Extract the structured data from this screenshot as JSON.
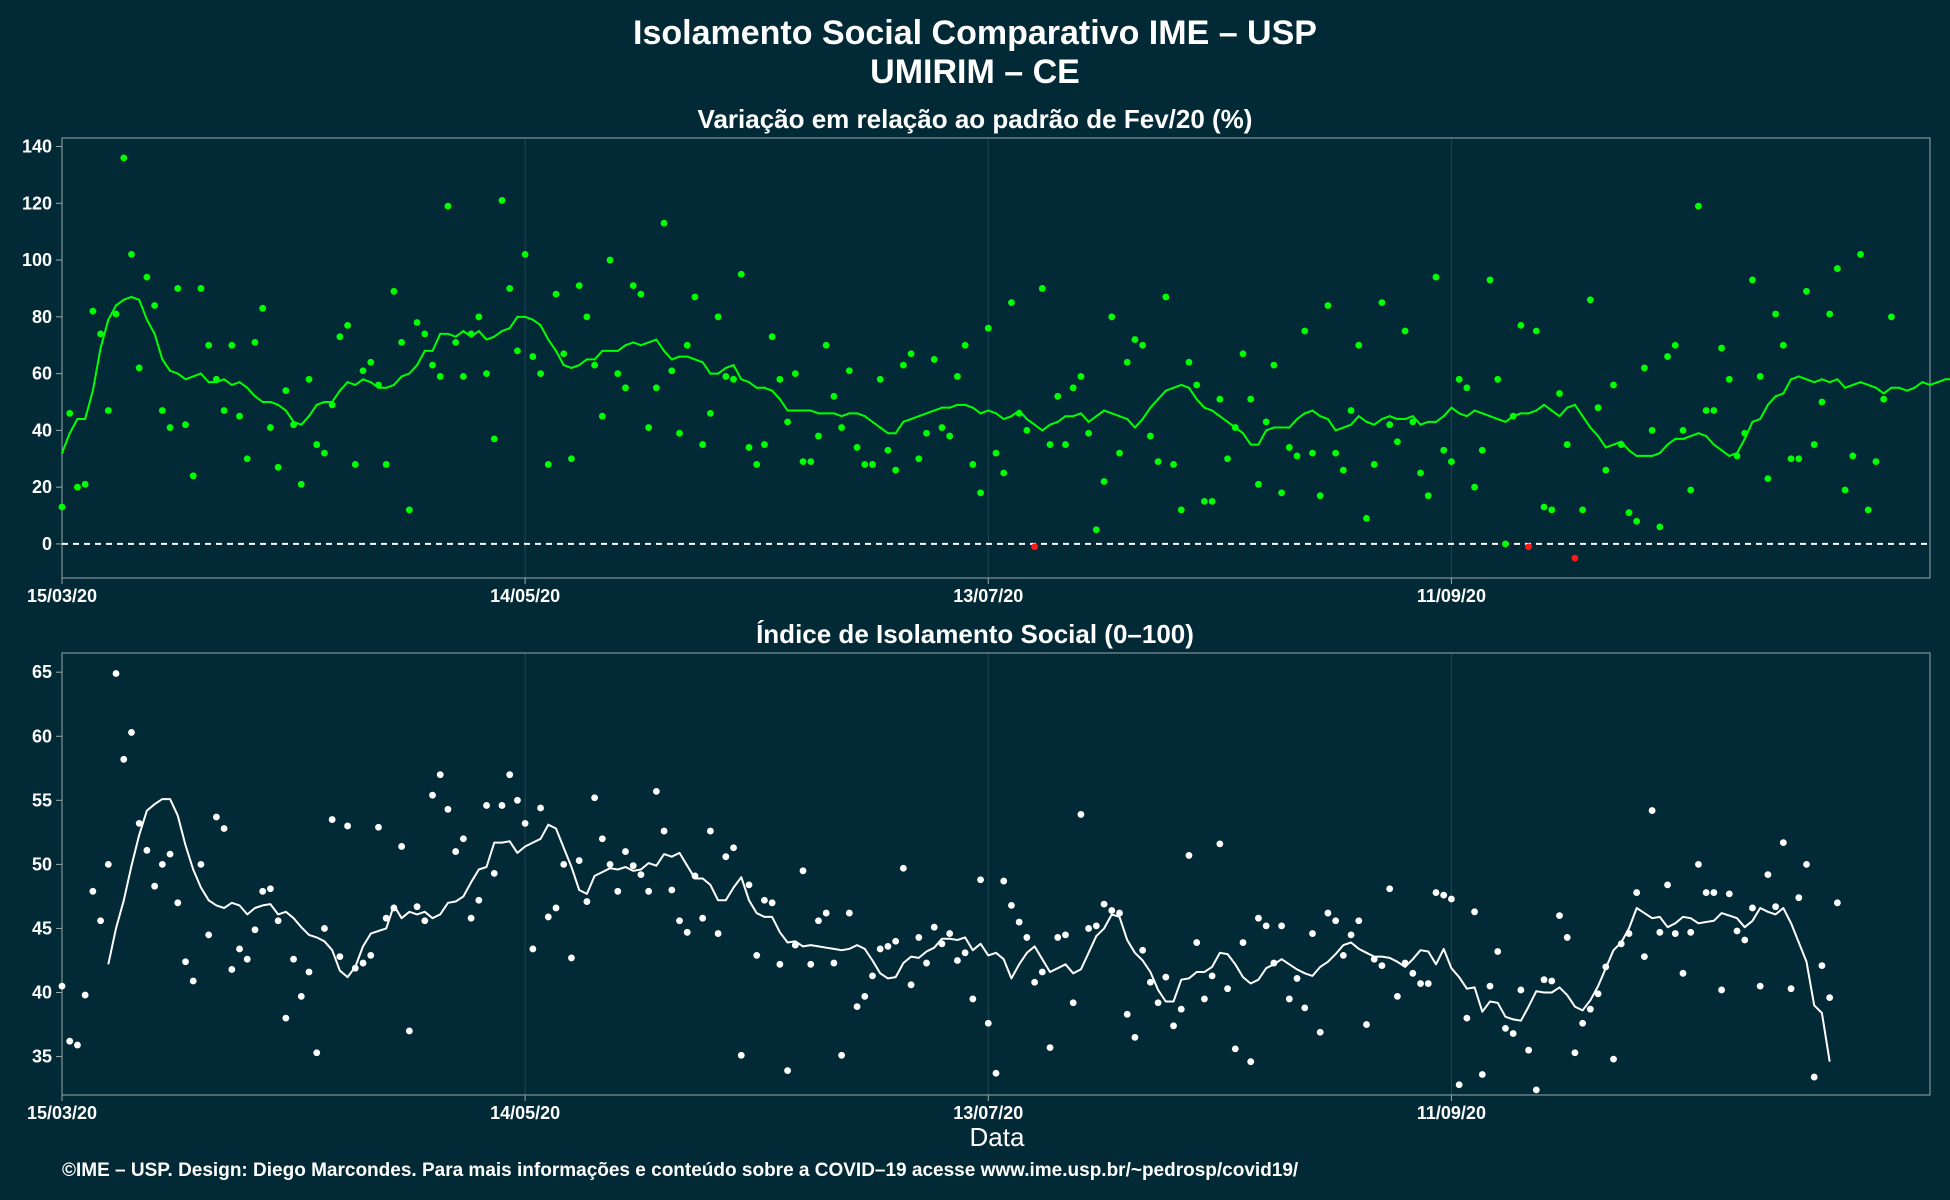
{
  "title_line1": "Isolamento Social Comparativo IME – USP",
  "title_line2": "UMIRIM – CE",
  "xlabel": "Data",
  "footer": "©IME – USP. Design: Diego Marcondes. Para mais informações e conteúdo sobre a COVID–19 acesse www.ime.usp.br/~pedrosp/covid19/",
  "colors": {
    "background": "#022a36",
    "panel_border": "#9aa7ab",
    "grid": "#1f4550",
    "green": "#00ff00",
    "red": "#ff1a1a",
    "white": "#ffffff"
  },
  "chart_data": [
    {
      "type": "scatter",
      "title": "Variação em relação ao padrão de Fev/20 (%)",
      "x_start": "2020-03-15",
      "x_end": "2020-11-12",
      "x_ticks": [
        "15/03/20",
        "14/05/20",
        "13/07/20",
        "11/09/20"
      ],
      "x_tick_dates": [
        "2020-03-15",
        "2020-05-14",
        "2020-07-13",
        "2020-09-11"
      ],
      "y_ticks": [
        0,
        20,
        40,
        60,
        80,
        100,
        120,
        140
      ],
      "ylim": [
        -12,
        143
      ],
      "reference_line": 0,
      "legend": "none",
      "series": [
        {
          "kind": "points",
          "values": [
            13,
            46,
            20,
            21,
            82,
            74,
            47,
            81,
            136,
            102,
            62,
            94,
            84,
            47,
            41,
            90,
            42,
            24,
            90,
            70,
            58,
            47,
            70,
            45,
            30,
            71,
            83,
            41,
            27,
            54,
            42,
            21,
            58,
            35,
            32,
            49,
            73,
            77,
            28,
            61,
            64,
            56,
            28,
            89,
            71,
            12,
            78,
            74,
            63,
            59,
            119,
            71,
            59,
            74,
            80,
            60,
            37,
            121,
            90,
            68,
            102,
            66,
            60,
            28,
            88,
            67,
            30,
            91,
            80,
            63,
            45,
            100,
            60,
            55,
            91,
            88,
            41,
            55,
            113,
            61,
            39,
            70,
            87,
            35,
            46,
            80,
            59,
            58,
            95,
            34,
            28,
            35,
            73,
            58,
            43,
            60,
            29,
            29,
            38,
            70,
            52,
            41,
            61,
            34,
            28,
            28,
            58,
            33,
            26,
            63,
            67,
            30,
            39,
            65,
            41,
            38,
            59,
            70,
            28,
            18,
            76,
            32,
            25,
            85,
            46,
            40,
            -1,
            90,
            35,
            52,
            35,
            55,
            59,
            39,
            5,
            22,
            80,
            32,
            64,
            72,
            70,
            38,
            29,
            87,
            28,
            12,
            64,
            56,
            15,
            15,
            51,
            30,
            41,
            67,
            51,
            21,
            43,
            63,
            18,
            34,
            31,
            75,
            32,
            17,
            84,
            32,
            26,
            47,
            70,
            9,
            28,
            85,
            42,
            36,
            75,
            43,
            25,
            17,
            94,
            33,
            29,
            58,
            55,
            20,
            33,
            93,
            58,
            0,
            45,
            77,
            -1,
            75,
            13,
            12,
            53,
            35,
            -5,
            12,
            86,
            48,
            26,
            56,
            35,
            11,
            8,
            62,
            40,
            6,
            66,
            70,
            40,
            19,
            119,
            47,
            47,
            69,
            58,
            31,
            39,
            93,
            59,
            23,
            81,
            70,
            30,
            30,
            89,
            35,
            50,
            81,
            97,
            19,
            31,
            102,
            12,
            29,
            51,
            80
          ]
        },
        {
          "kind": "moving_average",
          "values": [
            32,
            39,
            44,
            44,
            54,
            69,
            79,
            84,
            86,
            87,
            86,
            79,
            74,
            65,
            61,
            60,
            58,
            59,
            60,
            57,
            57,
            58,
            56,
            57,
            55,
            52,
            50,
            50,
            49,
            47,
            43,
            42,
            45,
            49,
            50,
            50,
            54,
            57,
            56,
            58,
            57,
            55,
            55,
            56,
            59,
            60,
            63,
            68,
            68,
            74,
            74,
            73,
            75,
            73,
            75,
            72,
            73,
            75,
            76,
            80,
            80,
            79,
            77,
            72,
            68,
            63,
            62,
            63,
            65,
            65,
            68,
            68,
            68,
            70,
            71,
            70,
            71,
            72,
            68,
            65,
            66,
            66,
            65,
            64,
            60,
            60,
            62,
            63,
            58,
            57,
            55,
            55,
            54,
            51,
            47,
            47,
            47,
            47,
            46,
            46,
            46,
            45,
            46,
            46,
            45,
            43,
            41,
            39,
            39,
            43,
            44,
            45,
            46,
            47,
            48,
            48,
            49,
            49,
            48,
            46,
            47,
            46,
            44,
            45,
            47,
            44,
            42,
            40,
            42,
            43,
            45,
            45,
            46,
            43,
            45,
            47,
            46,
            45,
            44,
            41,
            44,
            48,
            51,
            54,
            55,
            56,
            55,
            51,
            48,
            47,
            45,
            43,
            41,
            39,
            35,
            35,
            40,
            41,
            41,
            41,
            44,
            46,
            47,
            45,
            44,
            40,
            41,
            42,
            45,
            43,
            42,
            44,
            45,
            44,
            44,
            45,
            42,
            43,
            43,
            45,
            48,
            46,
            45,
            47,
            46,
            45,
            44,
            43,
            45,
            46,
            46,
            47,
            49,
            47,
            45,
            48,
            49,
            45,
            41,
            38,
            34,
            35,
            36,
            33,
            31,
            31,
            31,
            32,
            35,
            37,
            37,
            38,
            39,
            38,
            35,
            33,
            31,
            32,
            37,
            43,
            44,
            49,
            52,
            53,
            58,
            59,
            58,
            57,
            58,
            57,
            58,
            55,
            56,
            57,
            56,
            55,
            53,
            55,
            55,
            54,
            55,
            57,
            56,
            57,
            58,
            58,
            56,
            52,
            49,
            47,
            45,
            44,
            45,
            46
          ]
        }
      ]
    },
    {
      "type": "scatter",
      "title": "Índice de Isolamento Social (0–100)",
      "x_start": "2020-03-15",
      "x_end": "2020-11-12",
      "x_ticks": [
        "15/03/20",
        "14/05/20",
        "13/07/20",
        "11/09/20"
      ],
      "x_tick_dates": [
        "2020-03-15",
        "2020-05-14",
        "2020-07-13",
        "2020-09-11"
      ],
      "y_ticks": [
        35,
        40,
        45,
        50,
        55,
        60,
        65
      ],
      "ylim": [
        32,
        66.5
      ],
      "legend": "none",
      "series": [
        {
          "kind": "points",
          "values": [
            40.5,
            36.2,
            35.9,
            39.8,
            47.9,
            45.6,
            50.0,
            64.9,
            58.2,
            60.3,
            53.2,
            51.1,
            48.3,
            50.0,
            50.8,
            47.0,
            42.4,
            40.9,
            50.0,
            44.5,
            53.7,
            52.8,
            41.8,
            43.4,
            42.6,
            44.9,
            47.9,
            48.1,
            45.6,
            38.0,
            42.6,
            39.7,
            41.6,
            35.3,
            45.0,
            53.5,
            42.8,
            53.0,
            41.9,
            42.3,
            42.9,
            52.9,
            45.8,
            46.6,
            51.4,
            37.0,
            46.7,
            45.6,
            55.4,
            57.0,
            54.3,
            51.0,
            52.0,
            45.8,
            47.2,
            54.6,
            49.3,
            54.6,
            57.0,
            55.0,
            53.2,
            43.4,
            54.4,
            45.9,
            46.6,
            50.0,
            42.7,
            50.3,
            47.1,
            55.2,
            52.0,
            50.0,
            47.9,
            51.0,
            49.9,
            49.2,
            47.9,
            55.7,
            52.6,
            48.0,
            45.6,
            44.7,
            49.1,
            45.8,
            52.6,
            44.6,
            50.6,
            51.3,
            35.1,
            48.4,
            42.9,
            47.2,
            47.0,
            42.2,
            33.9,
            43.7,
            49.5,
            42.2,
            45.6,
            46.2,
            42.3,
            35.1,
            46.2,
            38.9,
            39.7,
            41.3,
            43.4,
            43.6,
            44.0,
            49.7,
            40.6,
            44.3,
            42.3,
            45.1,
            43.8,
            44.6,
            42.5,
            43.1,
            39.5,
            48.8,
            37.6,
            33.7,
            48.7,
            46.8,
            45.5,
            44.3,
            40.8,
            41.6,
            35.7,
            44.3,
            44.5,
            39.2,
            53.9,
            45.0,
            45.2,
            46.9,
            46.4,
            46.2,
            38.3,
            36.5,
            43.3,
            40.8,
            39.2,
            41.2,
            37.4,
            38.7,
            50.7,
            43.9,
            39.5,
            41.3,
            51.6,
            40.3,
            35.6,
            43.9,
            34.6,
            45.8,
            45.2,
            42.3,
            45.2,
            39.5,
            41.1,
            38.8,
            44.6,
            36.9,
            46.2,
            45.6,
            42.9,
            44.5,
            45.6,
            37.5,
            42.6,
            42.1,
            48.1,
            39.7,
            42.3,
            41.5,
            40.7,
            40.7,
            47.8,
            47.6,
            47.3,
            32.8,
            38.0,
            46.3,
            33.6,
            40.5,
            43.2,
            37.2,
            36.8,
            40.2,
            35.5,
            32.4,
            41.0,
            40.9,
            46.0,
            44.3,
            35.3,
            37.6,
            38.7,
            39.9,
            42.0,
            34.8,
            43.8,
            44.6,
            47.8,
            42.8,
            54.2,
            44.7,
            48.4,
            44.6,
            41.5,
            44.7,
            50.0,
            47.8,
            47.8,
            40.2,
            47.7,
            44.8,
            44.1,
            46.6,
            40.5,
            49.2,
            46.7,
            51.7,
            40.3,
            47.4,
            50.0,
            33.4,
            42.1,
            39.6,
            47.0
          ]
        },
        {
          "kind": "moving_average",
          "values": [
            42.2,
            45.0,
            47.2,
            49.9,
            52.3,
            54.2,
            54.7,
            55.1,
            55.1,
            53.8,
            51.5,
            49.6,
            48.2,
            47.2,
            46.8,
            46.6,
            47.0,
            46.8,
            46.1,
            46.6,
            46.8,
            46.9,
            46.1,
            46.3,
            45.8,
            45.1,
            44.5,
            44.3,
            44.0,
            43.3,
            41.7,
            41.2,
            42.0,
            43.6,
            44.6,
            44.8,
            45.0,
            46.8,
            45.8,
            46.3,
            46.1,
            46.3,
            45.8,
            46.1,
            47.0,
            47.1,
            47.5,
            48.6,
            49.6,
            49.8,
            51.7,
            51.7,
            51.8,
            50.9,
            51.4,
            51.7,
            52.0,
            53.1,
            52.8,
            51.3,
            49.8,
            48.0,
            47.7,
            49.1,
            49.4,
            49.7,
            49.6,
            49.8,
            49.5,
            49.6,
            50.1,
            49.9,
            50.8,
            50.6,
            50.9,
            49.9,
            48.9,
            48.9,
            48.4,
            47.2,
            47.2,
            48.2,
            49.0,
            47.2,
            46.2,
            45.9,
            45.9,
            44.7,
            43.9,
            44.0,
            43.6,
            43.7,
            43.6,
            43.5,
            43.4,
            43.3,
            43.4,
            43.7,
            43.4,
            42.5,
            41.5,
            41.1,
            41.2,
            42.3,
            42.8,
            42.7,
            43.2,
            43.5,
            44.2,
            44.2,
            44.1,
            44.3,
            43.3,
            43.8,
            42.9,
            43.1,
            42.6,
            41.1,
            42.2,
            43.1,
            43.6,
            42.6,
            41.6,
            41.9,
            42.2,
            41.5,
            41.8,
            43.1,
            44.4,
            45.0,
            46.1,
            45.9,
            44.1,
            43.1,
            42.5,
            41.6,
            40.2,
            39.3,
            39.3,
            41.0,
            41.1,
            41.6,
            41.6,
            42.0,
            43.1,
            43.0,
            42.2,
            41.2,
            40.7,
            41.0,
            41.9,
            42.2,
            42.6,
            42.2,
            41.8,
            41.5,
            41.3,
            42.0,
            42.4,
            43.0,
            43.7,
            43.9,
            43.4,
            43.1,
            42.8,
            42.8,
            42.7,
            42.4,
            42.0,
            42.6,
            43.3,
            43.2,
            42.2,
            43.4,
            41.9,
            41.2,
            40.3,
            40.4,
            38.5,
            39.3,
            39.2,
            38.1,
            37.9,
            37.8,
            38.9,
            40.1,
            40.0,
            40.0,
            40.4,
            39.8,
            38.9,
            38.6,
            39.4,
            40.5,
            41.9,
            43.3,
            43.9,
            45.0,
            46.6,
            46.2,
            45.8,
            45.9,
            45.1,
            45.4,
            45.9,
            45.8,
            45.4,
            45.5,
            45.6,
            46.2,
            46.0,
            45.8,
            45.1,
            45.6,
            46.6,
            46.3,
            46.1,
            46.6,
            45.4,
            43.9,
            42.4,
            39.0,
            38.4,
            34.6
          ]
        }
      ]
    }
  ]
}
